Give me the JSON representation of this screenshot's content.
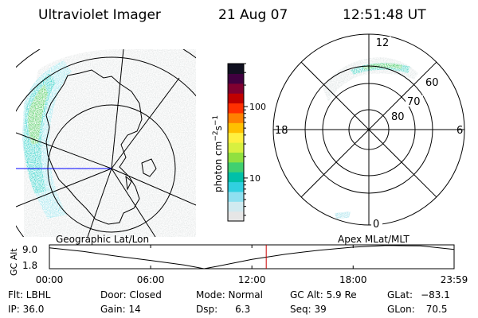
{
  "header": {
    "instrument": "Ultraviolet Imager",
    "date": "21 Aug 07",
    "time": "12:51:48 UT"
  },
  "colors": {
    "line": "#000000",
    "geo_marker": "#0000ff",
    "time_marker": "#cc0000"
  },
  "geo_panel": {
    "label": "Geographic Lat/Lon",
    "projection": "orthographic",
    "center_lat": -75,
    "center_lon": 75,
    "continent": "Antarctica",
    "aurora_region": "emission band along left limb, lon ~90-150 W, lat ~55-70 S",
    "max_intensity_color": "green"
  },
  "polar_panel": {
    "label": "Apex MLat/MLT",
    "mlt_labels": [
      "12",
      "18",
      "6",
      "0"
    ],
    "mlat_labels": [
      "60",
      "70",
      "80"
    ],
    "aurora_region": "band near 12 MLT, ~60 MLat"
  },
  "colorbar": {
    "unit_prefix": "photon cm",
    "sup1": "−2",
    "mid": "s",
    "sup2": "−1",
    "scale": "log",
    "ticks": [
      {
        "value": 10,
        "label": "10"
      },
      {
        "value": 100,
        "label": "100"
      }
    ],
    "range": [
      2.5,
      400
    ],
    "colors": [
      "#e6e6e6",
      "#d0eaf0",
      "#8ee0f0",
      "#30d0e0",
      "#00c0a8",
      "#40d070",
      "#90e040",
      "#d8f040",
      "#fff040",
      "#ffc000",
      "#ff8000",
      "#ff3000",
      "#c00000",
      "#800030",
      "#400040",
      "#101020"
    ]
  },
  "chart_data": {
    "type": "line",
    "title": "",
    "ylabel": "GC Alt",
    "yticks": [
      "9.0",
      "1.8"
    ],
    "xticks": [
      "00:00",
      "06:00",
      "12:00",
      "18:00",
      "23:59"
    ],
    "xlim": [
      "00:00",
      "23:59"
    ],
    "ylim": [
      1.8,
      9.0
    ],
    "series": [
      {
        "x": [
          "00:00",
          "02:00",
          "04:00",
          "06:00",
          "08:00",
          "09:10",
          "10:00",
          "11:00",
          "12:00",
          "14:00",
          "16:00",
          "18:00",
          "20:00",
          "22:00",
          "23:59"
        ],
        "y": [
          8.1,
          7.0,
          5.6,
          4.3,
          2.9,
          1.8,
          2.6,
          3.6,
          4.6,
          6.2,
          7.4,
          8.3,
          8.8,
          8.7,
          7.6
        ]
      }
    ],
    "current_time": "12:51"
  },
  "footer": {
    "flt_label": "Flt: LBHL",
    "ip_label": "IP: 36.0",
    "door_label": "Door: Closed",
    "gain_label": "Gain: 14",
    "mode_label": "Mode: Normal",
    "dsp_label": "Dsp:",
    "dsp_value": "6.3",
    "gcalt_label": "GC Alt: 5.9 Re",
    "seq_label": "Seq: 39",
    "glat_label": "GLat:",
    "glat_value": "−83.1",
    "glon_label": "GLon:",
    "glon_value": "70.5"
  }
}
